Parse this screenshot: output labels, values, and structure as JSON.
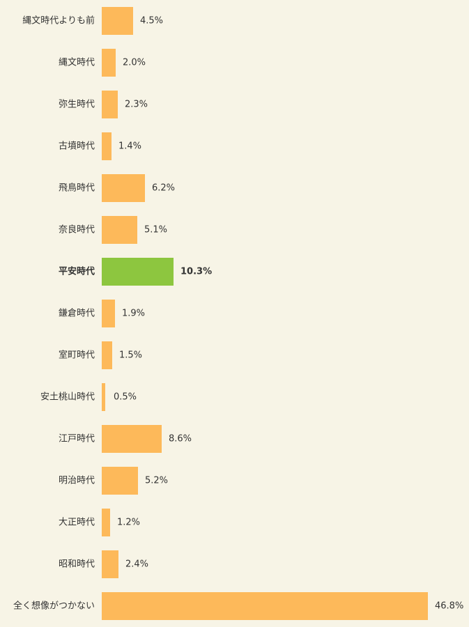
{
  "chart_data": {
    "type": "hbar",
    "categories": [
      "縄文時代よりも前",
      "縄文時代",
      "弥生時代",
      "古墳時代",
      "飛鳥時代",
      "奈良時代",
      "平安時代",
      "鎌倉時代",
      "室町時代",
      "安土桃山時代",
      "江戸時代",
      "明治時代",
      "大正時代",
      "昭和時代",
      "全く想像がつかない"
    ],
    "values": [
      4.5,
      2.0,
      2.3,
      1.4,
      6.2,
      5.1,
      10.3,
      1.9,
      1.5,
      0.5,
      8.6,
      5.2,
      1.2,
      2.4,
      46.8
    ],
    "value_labels": [
      "4.5%",
      "2.0%",
      "2.3%",
      "1.4%",
      "6.2%",
      "5.1%",
      "10.3%",
      "1.9%",
      "1.5%",
      "0.5%",
      "8.6%",
      "5.2%",
      "1.2%",
      "2.4%",
      "46.8%"
    ],
    "color": "#fdb95a",
    "highlight": {
      "index": 6,
      "color": "#8dc63f"
    }
  }
}
